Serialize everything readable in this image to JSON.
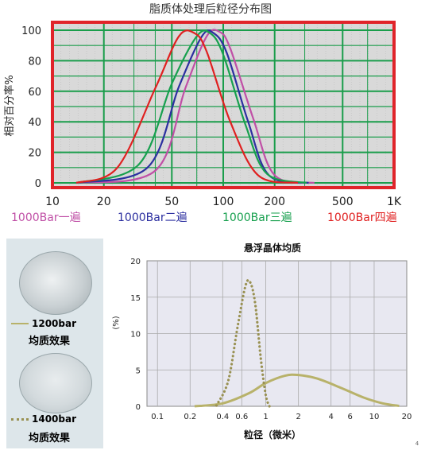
{
  "chart_data": [
    {
      "type": "line",
      "title": "脂质体处理后粒径分布图",
      "ylabel": "相对百分率%",
      "xlabel": "",
      "x_scale": "log",
      "xlim": [
        10,
        1000
      ],
      "ylim": [
        0,
        100
      ],
      "x_ticks": [
        10,
        20,
        50,
        100,
        200,
        500,
        1000
      ],
      "x_tick_labels": [
        "10",
        "20",
        "50",
        "100",
        "200",
        "500",
        "1K"
      ],
      "y_ticks": [
        0,
        20,
        40,
        60,
        80,
        100
      ],
      "y_tick_labels": [
        "0",
        "20",
        "40",
        "60",
        "80",
        "100"
      ],
      "grid": true,
      "legend_position": "bottom",
      "series": [
        {
          "name": "1000Bar一遍",
          "color": "#c04fa6",
          "x": [
            40,
            60,
            80,
            95,
            110,
            150,
            200
          ],
          "y": [
            8,
            62,
            96,
            99,
            88,
            42,
            5
          ]
        },
        {
          "name": "1000Bar二遍",
          "color": "#2c2fa0",
          "x": [
            36,
            55,
            75,
            88,
            105,
            140,
            185
          ],
          "y": [
            10,
            63,
            96,
            98,
            85,
            40,
            5
          ]
        },
        {
          "name": "1000Bar三遍",
          "color": "#17a04e",
          "x": [
            32,
            50,
            70,
            84,
            100,
            135,
            180
          ],
          "y": [
            12,
            65,
            96,
            98,
            84,
            38,
            6
          ]
        },
        {
          "name": "1000Bar四遍",
          "color": "#e02020",
          "x": [
            24,
            40,
            55,
            68,
            80,
            110,
            160
          ],
          "y": [
            10,
            62,
            96,
            98,
            86,
            40,
            5
          ]
        }
      ]
    },
    {
      "type": "line",
      "title": "悬浮晶体均质",
      "ylabel": "(%)",
      "xlabel": "粒径（微米）",
      "x_scale": "log",
      "xlim": [
        0.08,
        20
      ],
      "ylim": [
        0,
        20
      ],
      "x_ticks": [
        0.1,
        0.2,
        0.4,
        0.6,
        1,
        2,
        4,
        6,
        10,
        20
      ],
      "x_tick_labels": [
        "0.1",
        "0.2",
        "0.4",
        "0.6",
        "1",
        "2",
        "4",
        "6",
        "10",
        "20"
      ],
      "y_ticks": [
        0,
        5,
        10,
        15,
        20
      ],
      "y_tick_labels": [
        "0",
        "5",
        "10",
        "15",
        "20"
      ],
      "grid": true,
      "series": [
        {
          "name": "1200bar",
          "style": "solid",
          "color": "#b8b26a",
          "x": [
            0.22,
            0.4,
            0.7,
            1.0,
            1.5,
            2.0,
            3.0,
            5.0,
            8.0,
            12.0,
            17.0
          ],
          "y": [
            0.0,
            0.4,
            1.8,
            3.2,
            4.2,
            4.3,
            3.8,
            2.5,
            1.2,
            0.4,
            0.05
          ]
        },
        {
          "name": "1400bar",
          "style": "dotted",
          "color": "#999152",
          "x": [
            0.35,
            0.45,
            0.55,
            0.65,
            0.72,
            0.8,
            0.9,
            1.0,
            1.08
          ],
          "y": [
            0.1,
            3.5,
            11.0,
            16.6,
            17.0,
            14.0,
            6.5,
            1.5,
            0.0
          ]
        }
      ]
    }
  ],
  "left_panel": {
    "legend1_label": "1200bar",
    "caption1": "均质效果",
    "legend2_label": "1400bar",
    "caption2": "均质效果"
  },
  "colors": {
    "top_frame": "#e0242a",
    "top_grid_green": "#1a9d4b",
    "top_bg": "#d9d9d9",
    "bottom_plot_bg": "#e8e8f1",
    "bottom_grid": "#aaaaaa"
  },
  "page_number": "4"
}
